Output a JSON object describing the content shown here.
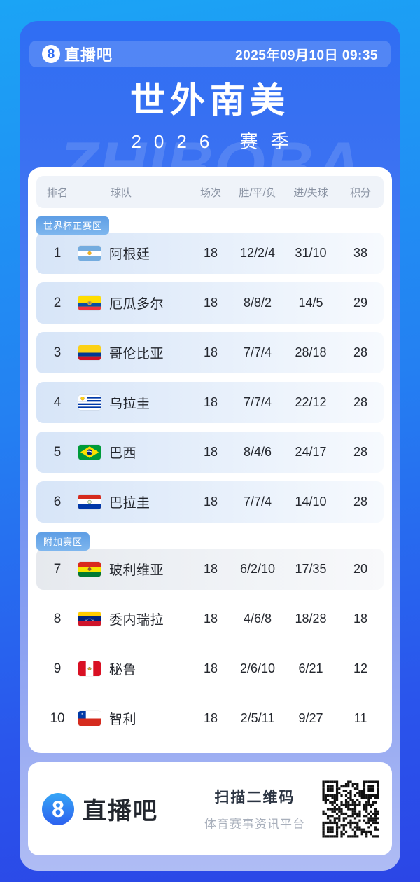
{
  "topbar": {
    "logo_num": "8",
    "logo_text": "直播吧",
    "datetime": "2025年09月10日 09:35"
  },
  "hero": {
    "title": "世外南美",
    "subtitle": "2026 赛季",
    "watermark": "ZHIBOBA"
  },
  "table": {
    "columns": [
      "排名",
      "球队",
      "场次",
      "胜/平/负",
      "进/失球",
      "积分"
    ],
    "zones": [
      {
        "label": "世界杯正赛区",
        "style": "qualified",
        "rows": [
          {
            "rank": "1",
            "flag": "argentina",
            "team": "阿根廷",
            "played": "18",
            "wdl": "12/2/4",
            "goals": "31/10",
            "points": "38"
          },
          {
            "rank": "2",
            "flag": "ecuador",
            "team": "厄瓜多尔",
            "played": "18",
            "wdl": "8/8/2",
            "goals": "14/5",
            "points": "29"
          },
          {
            "rank": "3",
            "flag": "colombia",
            "team": "哥伦比亚",
            "played": "18",
            "wdl": "7/7/4",
            "goals": "28/18",
            "points": "28"
          },
          {
            "rank": "4",
            "flag": "uruguay",
            "team": "乌拉圭",
            "played": "18",
            "wdl": "7/7/4",
            "goals": "22/12",
            "points": "28"
          },
          {
            "rank": "5",
            "flag": "brazil",
            "team": "巴西",
            "played": "18",
            "wdl": "8/4/6",
            "goals": "24/17",
            "points": "28"
          },
          {
            "rank": "6",
            "flag": "paraguay",
            "team": "巴拉圭",
            "played": "18",
            "wdl": "7/7/4",
            "goals": "14/10",
            "points": "28"
          }
        ]
      },
      {
        "label": "附加赛区",
        "style": "playoff",
        "rows": [
          {
            "rank": "7",
            "flag": "bolivia",
            "team": "玻利维亚",
            "played": "18",
            "wdl": "6/2/10",
            "goals": "17/35",
            "points": "20"
          }
        ]
      },
      {
        "label": null,
        "style": "none",
        "rows": [
          {
            "rank": "8",
            "flag": "venezuela",
            "team": "委内瑞拉",
            "played": "18",
            "wdl": "4/6/8",
            "goals": "18/28",
            "points": "18"
          },
          {
            "rank": "9",
            "flag": "peru",
            "team": "秘鲁",
            "played": "18",
            "wdl": "2/6/10",
            "goals": "6/21",
            "points": "12"
          },
          {
            "rank": "10",
            "flag": "chile",
            "team": "智利",
            "played": "18",
            "wdl": "2/5/11",
            "goals": "9/27",
            "points": "11"
          }
        ]
      }
    ]
  },
  "footer": {
    "logo_num": "8",
    "logo_text": "直播吧",
    "scan_title": "扫描二维码",
    "scan_subtitle": "体育赛事资讯平台"
  },
  "colors": {
    "outer_top": "#1BA4F5",
    "outer_bottom": "#2B46E6",
    "panel_top": "#2F6EF3",
    "panel_bottom": "#AFBCF4",
    "badge_blue": "#6FACE8",
    "qualified_row_tint": "#D7E5F8",
    "playoff_row_tint": "#E6E9EE",
    "header_text": "#8A93A3",
    "row_text": "#24272E",
    "brand_blue": "#2F6CF2"
  }
}
